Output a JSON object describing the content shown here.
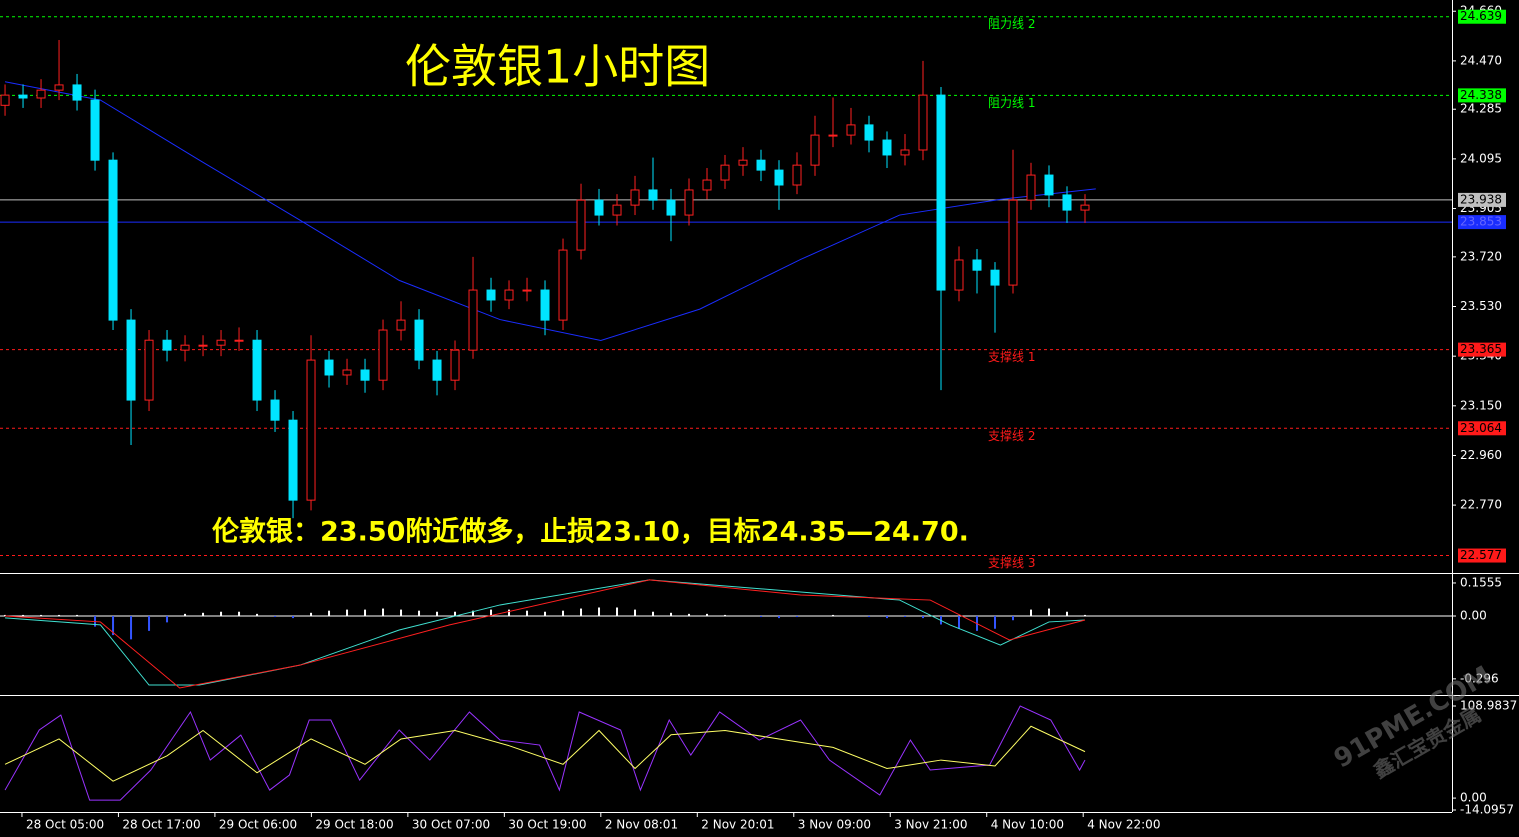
{
  "chart_data": [
    {
      "type": "candlestick",
      "title": "伦敦银1小时图",
      "annotation": "伦敦银：23.50附近做多，止损23.10，目标24.35—24.70.",
      "watermark": [
        "91PME.COM",
        "鑫汇宝贵金属"
      ],
      "xlim": [
        -0.28,
        80.39
      ],
      "ylim": [
        22.514,
        24.703
      ],
      "yticks": [
        {
          "value": 24.66,
          "label": "24.660"
        },
        {
          "value": 24.47,
          "label": "24.470"
        },
        24.285,
        24.095,
        23.905,
        {
          "value": 23.72,
          "label": "23.720"
        },
        {
          "value": 23.53,
          "label": "23.530"
        },
        {
          "value": 23.34,
          "label": "23.340"
        },
        {
          "value": 23.15,
          "label": "23.150"
        },
        {
          "value": 22.96,
          "label": "22.960"
        },
        {
          "value": 22.77,
          "label": "22.770"
        }
      ],
      "up_color": "#ff2020",
      "down_color": "#00e5ff",
      "open": [
        24.3,
        24.339,
        24.328,
        24.358,
        24.378,
        24.32,
        24.09,
        23.478,
        23.172,
        23.401,
        23.363,
        23.382,
        23.382,
        23.401,
        23.401,
        23.172,
        23.095,
        22.789,
        23.325,
        23.268,
        23.287,
        23.248,
        23.44,
        23.478,
        23.325,
        23.248,
        23.363,
        23.593,
        23.555,
        23.593,
        23.593,
        23.478,
        23.746,
        23.937,
        23.88,
        23.918,
        23.976,
        23.937,
        23.88,
        23.976,
        24.014,
        24.071,
        24.09,
        24.052,
        23.995,
        24.071,
        24.186,
        24.186,
        24.225,
        24.167,
        24.11,
        24.129,
        24.339,
        23.593,
        23.708,
        23.669,
        23.612,
        23.937,
        24.033,
        23.957,
        23.899
      ],
      "high": [
        24.38,
        24.38,
        24.4,
        24.55,
        24.42,
        24.36,
        24.12,
        23.52,
        23.44,
        23.44,
        23.42,
        23.42,
        23.44,
        23.45,
        23.44,
        23.21,
        23.13,
        23.42,
        23.36,
        23.33,
        23.33,
        23.48,
        23.55,
        23.52,
        23.36,
        23.4,
        23.72,
        23.64,
        23.63,
        23.64,
        23.63,
        23.79,
        24.0,
        23.98,
        23.96,
        24.03,
        24.1,
        23.98,
        24.02,
        24.06,
        24.11,
        24.14,
        24.13,
        24.09,
        24.12,
        24.26,
        24.33,
        24.29,
        24.26,
        24.2,
        24.19,
        24.47,
        24.37,
        23.76,
        23.75,
        23.7,
        24.13,
        24.08,
        24.07,
        23.99,
        23.96
      ],
      "low": [
        24.26,
        24.29,
        24.29,
        24.32,
        24.28,
        24.05,
        23.44,
        23.0,
        23.13,
        23.32,
        23.32,
        23.34,
        23.34,
        23.36,
        23.13,
        23.05,
        22.72,
        22.75,
        23.22,
        23.23,
        23.2,
        23.21,
        23.4,
        23.29,
        23.19,
        23.21,
        23.33,
        23.51,
        23.52,
        23.55,
        23.42,
        23.44,
        23.71,
        23.84,
        23.84,
        23.88,
        23.9,
        23.78,
        23.84,
        23.94,
        23.98,
        24.03,
        24.01,
        23.9,
        23.96,
        24.03,
        24.14,
        24.15,
        24.12,
        24.06,
        24.07,
        24.09,
        23.21,
        23.55,
        23.58,
        23.43,
        23.58,
        23.9,
        23.91,
        23.85,
        23.85
      ],
      "close": [
        24.339,
        24.328,
        24.358,
        24.378,
        24.32,
        24.09,
        23.478,
        23.172,
        23.401,
        23.363,
        23.382,
        23.382,
        23.401,
        23.401,
        23.172,
        23.095,
        22.789,
        23.325,
        23.268,
        23.287,
        23.248,
        23.44,
        23.478,
        23.325,
        23.248,
        23.363,
        23.593,
        23.555,
        23.593,
        23.593,
        23.478,
        23.746,
        23.937,
        23.88,
        23.918,
        23.976,
        23.937,
        23.88,
        23.976,
        24.014,
        24.071,
        24.09,
        24.052,
        23.995,
        24.071,
        24.186,
        24.186,
        24.225,
        24.167,
        24.11,
        24.129,
        24.339,
        23.593,
        23.708,
        23.669,
        23.612,
        23.937,
        24.033,
        23.957,
        23.899,
        23.918
      ],
      "lines": [
        {
          "color": "#1a2dff",
          "x": [
            0,
            5.3,
            10.8,
            16.4,
            21.9,
            27.5,
            33.1,
            38.6,
            44.2,
            49.7,
            55.3,
            60.6
          ],
          "values": [
            24.39,
            24.32,
            24.09,
            23.86,
            23.63,
            23.48,
            23.4,
            23.52,
            23.71,
            23.88,
            23.94,
            23.98
          ]
        }
      ],
      "levels": [
        {
          "value": 24.639,
          "label": "阻力线 2",
          "color": "#00ff00",
          "style": "dashed"
        },
        {
          "value": 24.338,
          "label": "阻力线 1",
          "color": "#00ff00",
          "style": "dashed"
        },
        {
          "value": 23.938,
          "color": "#c0c0c0",
          "style": "solid"
        },
        {
          "value": 23.853,
          "color": "#1a2dff",
          "style": "solid"
        },
        {
          "value": 23.365,
          "label": "支撑线 1",
          "color": "#ff1a1a",
          "style": "dashed"
        },
        {
          "value": 23.064,
          "label": "支撑线 2",
          "color": "#ff1a1a",
          "style": "dashed"
        },
        {
          "value": 22.577,
          "label": "支撑线 3",
          "color": "#ff1a1a",
          "style": "dashed"
        }
      ]
    },
    {
      "type": "macd",
      "ylim": [
        -0.372,
        0.193
      ],
      "yticks": [
        0.1555,
        {
          "value": 0,
          "label": "0.00"
        },
        -0.296
      ],
      "up_color": "#ffffff",
      "down_color": "#3355ff",
      "values": [
        0.005,
        0.005,
        0.005,
        0.005,
        0.005,
        -0.05,
        -0.09,
        -0.11,
        -0.07,
        -0.03,
        0.01,
        0.015,
        0.02,
        0.02,
        0.01,
        -0.005,
        -0.01,
        0.015,
        0.025,
        0.03,
        0.03,
        0.035,
        0.03,
        0.025,
        0.02,
        0.02,
        0.025,
        0.03,
        0.03,
        0.025,
        0.02,
        0.025,
        0.035,
        0.04,
        0.04,
        0.03,
        0.02,
        0.015,
        0.01,
        0.01,
        0.005,
        0,
        -0.005,
        -0.01,
        -0.005,
        0,
        0.005,
        0,
        -0.005,
        -0.01,
        -0.005,
        -0.01,
        -0.04,
        -0.06,
        -0.07,
        -0.06,
        -0.02,
        0.03,
        0.035,
        0.02,
        0.005
      ],
      "lines": [
        {
          "color": "#40e0d0",
          "x": [
            0,
            5.3,
            8,
            10.8,
            16.4,
            21.9,
            27.5,
            35.8,
            44.2,
            49.7,
            52.5,
            55.3,
            58,
            60
          ],
          "values": [
            -0.009,
            -0.042,
            -0.325,
            -0.325,
            -0.231,
            -0.066,
            0.052,
            0.17,
            0.113,
            0.075,
            -0.042,
            -0.137,
            -0.028,
            -0.019
          ]
        },
        {
          "color": "#ff2020",
          "x": [
            0,
            5.3,
            9.7,
            16.4,
            24.7,
            35.8,
            44.2,
            51.4,
            55.8,
            60
          ],
          "values": [
            0,
            -0.028,
            -0.339,
            -0.231,
            -0.042,
            0.17,
            0.099,
            0.075,
            -0.113,
            -0.019
          ]
        }
      ]
    },
    {
      "type": "oscillator",
      "ylim": [
        -14.0957,
        118.46
      ],
      "yticks": [
        108.9837,
        {
          "value": 0,
          "label": "0.00"
        },
        -14.0957
      ],
      "xticks": [
        {
          "value": 0.94,
          "label": "28 Oct 05:00"
        },
        {
          "value": 6.3,
          "label": "28 Oct 17:00"
        },
        {
          "value": 11.66,
          "label": "29 Oct 06:00"
        },
        {
          "value": 17.02,
          "label": "29 Oct 18:00"
        },
        {
          "value": 22.38,
          "label": "30 Oct 07:00"
        },
        {
          "value": 27.74,
          "label": "30 Oct 19:00"
        },
        {
          "value": 33.1,
          "label": "2 Nov 08:01"
        },
        {
          "value": 38.46,
          "label": "2 Nov 20:01"
        },
        {
          "value": 43.82,
          "label": "3 Nov 09:00"
        },
        {
          "value": 49.18,
          "label": "3 Nov 21:00"
        },
        {
          "value": 54.54,
          "label": "4 Nov 10:00"
        },
        {
          "value": 59.9,
          "label": "4 Nov 22:00"
        }
      ],
      "lines": [
        {
          "color": "#9933ff",
          "x": [
            0,
            1.9,
            3.1,
            4.7,
            6.4,
            8.1,
            10.3,
            11.4,
            13.1,
            14.7,
            15.8,
            16.9,
            18.1,
            19.7,
            21.9,
            23.6,
            25.8,
            27.5,
            29.7,
            30.8,
            31.9,
            34.2,
            35.3,
            36.9,
            38.1,
            39.7,
            41.9,
            44.2,
            45.8,
            48.6,
            50.3,
            51.4,
            54.7,
            56.4,
            58.1,
            59.7,
            60
          ],
          "values": [
            9.5,
            80.6,
            98.3,
            -2.4,
            -2.4,
            33.2,
            101.9,
            45.0,
            74.6,
            9.5,
            27.3,
            92.4,
            92.4,
            21.3,
            80.6,
            45.0,
            101.9,
            68.7,
            62.8,
            9.5,
            101.9,
            80.6,
            9.5,
            92.4,
            50.9,
            101.9,
            68.7,
            92.4,
            45.0,
            3.6,
            68.7,
            33.2,
            39.1,
            109.0,
            92.4,
            33.2,
            45.0
          ]
        },
        {
          "color": "#ffff66",
          "x": [
            0,
            3,
            6,
            9,
            11,
            14,
            17,
            20,
            22,
            25,
            28,
            31,
            33,
            35,
            37,
            40,
            43,
            46,
            49,
            52,
            55,
            57,
            60
          ],
          "values": [
            40,
            70,
            20,
            50,
            80,
            30,
            70,
            40,
            70,
            80,
            62,
            40,
            80,
            35,
            75,
            80,
            70,
            60,
            35,
            45,
            38,
            85,
            55
          ]
        }
      ]
    }
  ]
}
